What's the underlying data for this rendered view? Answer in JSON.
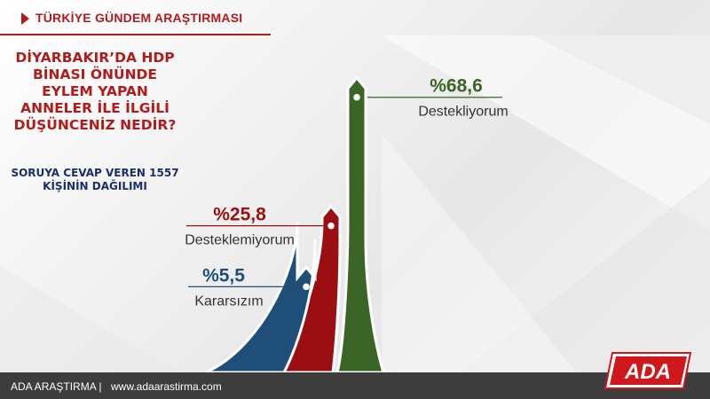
{
  "header": {
    "title": "TÜRKİYE GÜNDEM ARAŞTIRMASI"
  },
  "question": {
    "lines": [
      "DİYARBAKIR’DA HDP",
      "BİNASI ÖNÜNDE",
      "EYLEM YAPAN",
      "ANNELER İLE İLGİLİ",
      "DÜŞÜNCENİZ NEDİR?"
    ]
  },
  "sample": {
    "lines": [
      "SORUYA CEVAP VEREN 1557",
      "KİŞİNİN DAĞILIMI"
    ]
  },
  "chart_data": {
    "type": "bar",
    "title": "DİYARBAKIR’DA HDP BİNASI ÖNÜNDE EYLEM YAPAN ANNELER İLE İLGİLİ DÜŞÜNCENİZ NEDİR?",
    "categories": [
      "Kararsızım",
      "Desteklemiyorum",
      "Destekliyorum"
    ],
    "values": [
      5.5,
      25.8,
      68.6
    ],
    "value_labels": [
      "%5,5",
      "%25,8",
      "%68,6"
    ],
    "colors": [
      "#1f4e79",
      "#9b0f12",
      "#3b6527"
    ],
    "label_colors": [
      "#1f4e79",
      "#9b0f12",
      "#3b6527"
    ],
    "unit": "%"
  },
  "footer": {
    "brand": "ADA ARAŞTIRMA |",
    "url": "www.adaarastirma.com"
  },
  "logo": {
    "text": "ADA",
    "color": "#d0171c"
  }
}
